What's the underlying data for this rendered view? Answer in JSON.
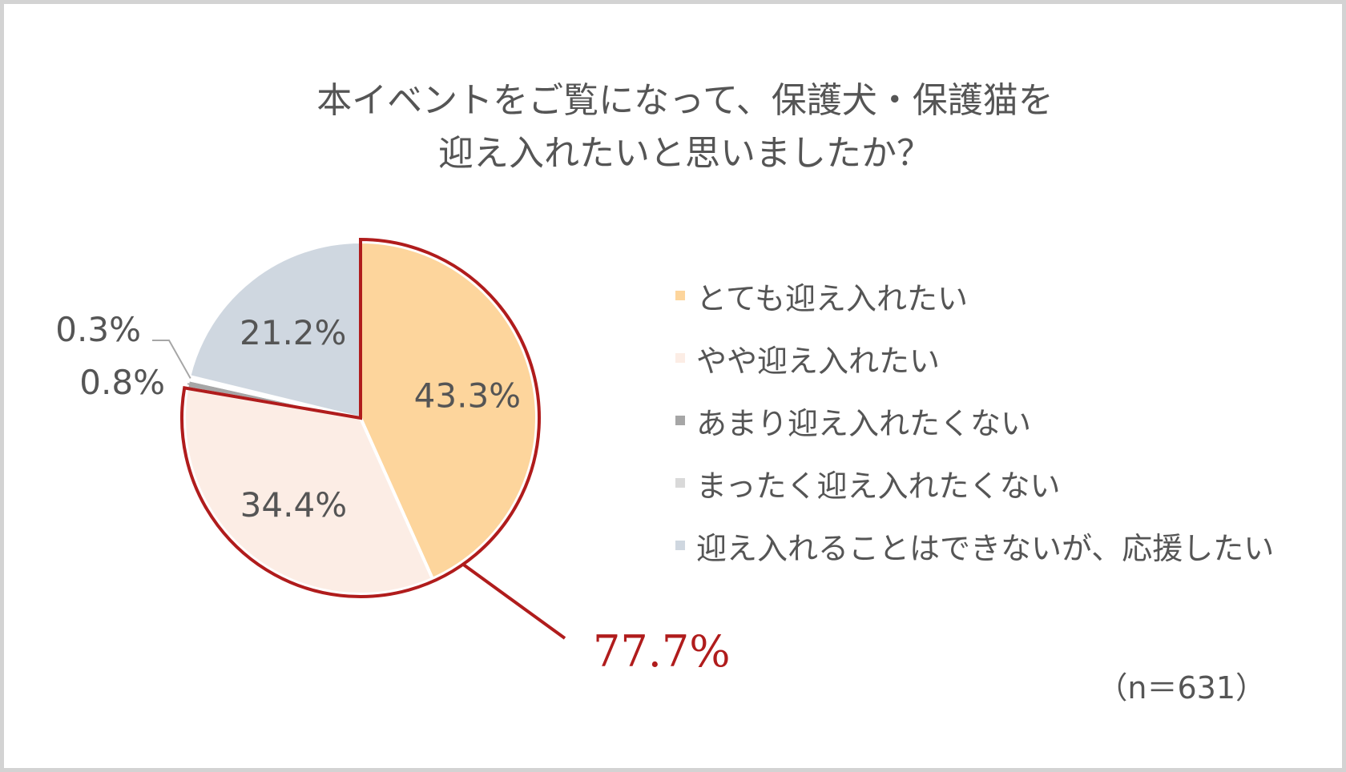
{
  "chart_data": {
    "type": "pie",
    "title_lines": [
      "本イベントをご覧になって、保護犬・保護猫を",
      "迎え入れたいと思いましたか？"
    ],
    "slices": [
      {
        "name": "とても迎え入れたい",
        "value": 43.3,
        "label": "43.3%",
        "color": "#FDD59C"
      },
      {
        "name": "やや迎え入れたい",
        "value": 34.4,
        "label": "34.4%",
        "color": "#FCEDE5"
      },
      {
        "name": "あまり迎え入れたくない",
        "value": 0.8,
        "label": "0.8%",
        "color": "#A6A6A6"
      },
      {
        "name": "まったく迎え入れたくない",
        "value": 0.3,
        "label": "0.3%",
        "color": "#D9D9D9"
      },
      {
        "name": "迎え入れることはできないが、応援したい",
        "value": 21.2,
        "label": "21.2%",
        "color": "#CFD7E0"
      }
    ],
    "highlight": {
      "label": "77.7%",
      "color": "#B01C1C"
    },
    "sample_size": "（n＝631）",
    "legend_position": "right"
  }
}
